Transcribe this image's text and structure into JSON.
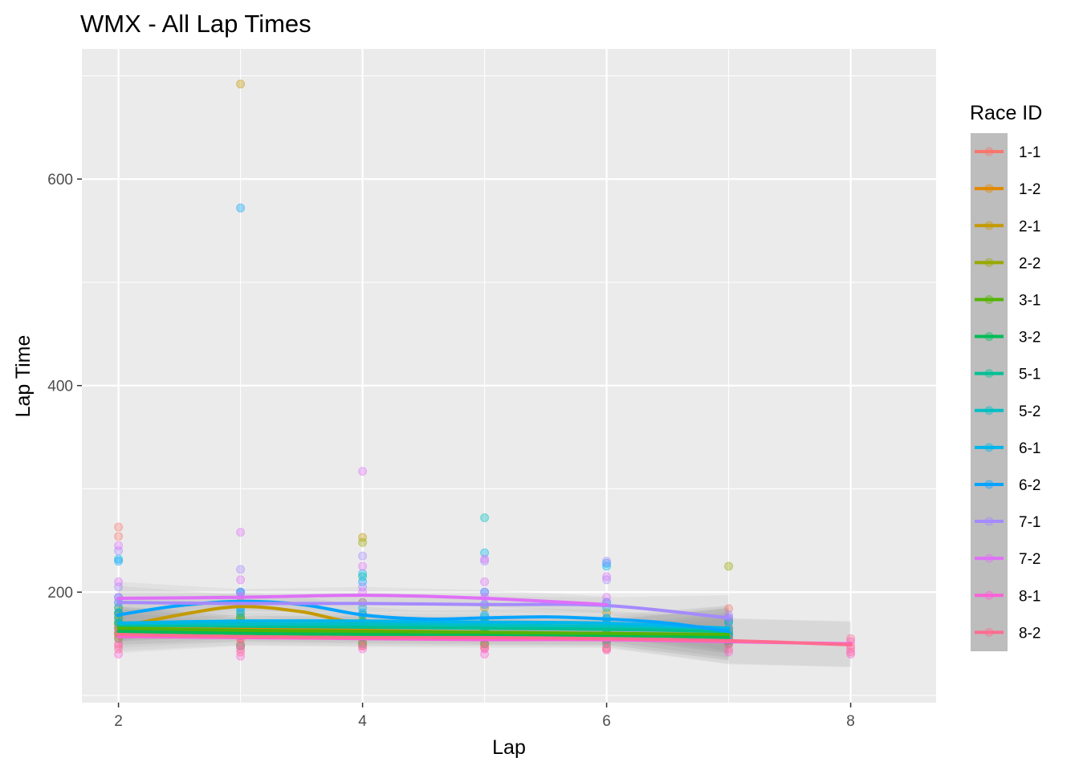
{
  "chart_data": {
    "type": "scatter",
    "title": "WMX - All Lap Times",
    "xlabel": "Lap",
    "ylabel": "Lap Time",
    "xlim": [
      1.7,
      8.7
    ],
    "ylim": [
      93,
      726
    ],
    "x_ticks": [
      2,
      4,
      6,
      8
    ],
    "y_ticks": [
      200,
      400,
      600
    ],
    "grid": true,
    "legend": {
      "title": "Race ID",
      "placement": "right",
      "entries": [
        "1-1",
        "1-2",
        "2-1",
        "2-2",
        "3-1",
        "3-2",
        "5-1",
        "5-2",
        "6-1",
        "6-2",
        "7-1",
        "7-2",
        "8-1",
        "8-2"
      ]
    },
    "series": [
      {
        "name": "1-1",
        "color": "#F8766D",
        "points": [
          [
            2,
            263
          ],
          [
            2,
            254
          ],
          [
            2,
            172
          ],
          [
            2,
            162
          ],
          [
            2,
            150
          ],
          [
            3,
            168
          ],
          [
            3,
            158
          ],
          [
            3,
            148
          ],
          [
            4,
            167
          ],
          [
            4,
            157
          ],
          [
            4,
            148
          ],
          [
            5,
            165
          ],
          [
            5,
            155
          ],
          [
            5,
            146
          ],
          [
            6,
            162
          ],
          [
            6,
            153
          ],
          [
            6,
            145
          ],
          [
            7,
            184
          ],
          [
            7,
            160
          ],
          [
            7,
            150
          ]
        ],
        "smooth": [
          [
            2,
            165
          ],
          [
            3,
            160
          ],
          [
            4,
            158
          ],
          [
            5,
            157
          ],
          [
            6,
            157
          ],
          [
            7,
            156
          ]
        ]
      },
      {
        "name": "1-2",
        "color": "#E38900",
        "points": [
          [
            2,
            178
          ],
          [
            2,
            168
          ],
          [
            2,
            158
          ],
          [
            3,
            178
          ],
          [
            3,
            165
          ],
          [
            3,
            155
          ],
          [
            4,
            172
          ],
          [
            4,
            162
          ],
          [
            4,
            152
          ],
          [
            5,
            170
          ],
          [
            5,
            160
          ],
          [
            5,
            150
          ],
          [
            6,
            168
          ],
          [
            6,
            158
          ],
          [
            7,
            165
          ],
          [
            7,
            155
          ]
        ],
        "smooth": [
          [
            2,
            168
          ],
          [
            3,
            166
          ],
          [
            4,
            163
          ],
          [
            5,
            161
          ],
          [
            6,
            160
          ],
          [
            7,
            158
          ]
        ]
      },
      {
        "name": "2-1",
        "color": "#C49A00",
        "points": [
          [
            2,
            185
          ],
          [
            2,
            170
          ],
          [
            2,
            160
          ],
          [
            3,
            692
          ],
          [
            3,
            190
          ],
          [
            3,
            175
          ],
          [
            4,
            253
          ],
          [
            4,
            190
          ],
          [
            4,
            170
          ],
          [
            5,
            185
          ],
          [
            5,
            168
          ],
          [
            6,
            180
          ],
          [
            6,
            165
          ],
          [
            7,
            172
          ],
          [
            7,
            160
          ]
        ],
        "smooth": [
          [
            2,
            166
          ],
          [
            2.5,
            178
          ],
          [
            3,
            186
          ],
          [
            3.5,
            181
          ],
          [
            4,
            170
          ],
          [
            5,
            166
          ],
          [
            6,
            165
          ],
          [
            7,
            163
          ]
        ]
      },
      {
        "name": "2-2",
        "color": "#99A800",
        "points": [
          [
            2,
            180
          ],
          [
            2,
            165
          ],
          [
            3,
            175
          ],
          [
            3,
            162
          ],
          [
            4,
            248
          ],
          [
            4,
            178
          ],
          [
            4,
            165
          ],
          [
            5,
            172
          ],
          [
            5,
            160
          ],
          [
            6,
            170
          ],
          [
            6,
            158
          ],
          [
            7,
            225
          ],
          [
            7,
            165
          ],
          [
            7,
            155
          ]
        ],
        "smooth": [
          [
            2,
            170
          ],
          [
            3,
            169
          ],
          [
            4,
            168
          ],
          [
            5,
            166
          ],
          [
            6,
            165
          ],
          [
            7,
            163
          ]
        ]
      },
      {
        "name": "3-1",
        "color": "#53B400",
        "points": [
          [
            2,
            175
          ],
          [
            2,
            160
          ],
          [
            3,
            170
          ],
          [
            3,
            158
          ],
          [
            4,
            168
          ],
          [
            4,
            156
          ],
          [
            5,
            166
          ],
          [
            5,
            155
          ],
          [
            6,
            164
          ],
          [
            6,
            154
          ],
          [
            7,
            162
          ],
          [
            7,
            153
          ]
        ],
        "smooth": [
          [
            2,
            165
          ],
          [
            3,
            163
          ],
          [
            4,
            162
          ],
          [
            5,
            161
          ],
          [
            6,
            160
          ],
          [
            7,
            159
          ]
        ]
      },
      {
        "name": "3-2",
        "color": "#00BC56",
        "points": [
          [
            2,
            170
          ],
          [
            2,
            155
          ],
          [
            3,
            165
          ],
          [
            3,
            148
          ],
          [
            4,
            163
          ],
          [
            4,
            150
          ],
          [
            5,
            162
          ],
          [
            5,
            150
          ],
          [
            6,
            160
          ],
          [
            6,
            150
          ],
          [
            7,
            158
          ],
          [
            7,
            150
          ]
        ],
        "smooth": [
          [
            2,
            162
          ],
          [
            3,
            160
          ],
          [
            4,
            159
          ],
          [
            5,
            158
          ],
          [
            6,
            157
          ],
          [
            7,
            156
          ]
        ]
      },
      {
        "name": "5-1",
        "color": "#00C094",
        "points": [
          [
            2,
            180
          ],
          [
            2,
            165
          ],
          [
            3,
            175
          ],
          [
            3,
            160
          ],
          [
            4,
            215
          ],
          [
            4,
            172
          ],
          [
            4,
            158
          ],
          [
            5,
            170
          ],
          [
            5,
            156
          ],
          [
            6,
            168
          ],
          [
            6,
            155
          ],
          [
            7,
            165
          ],
          [
            7,
            154
          ]
        ],
        "smooth": [
          [
            2,
            168
          ],
          [
            3,
            167
          ],
          [
            4,
            166
          ],
          [
            5,
            165
          ],
          [
            6,
            164
          ],
          [
            7,
            162
          ]
        ]
      },
      {
        "name": "5-2",
        "color": "#00BFC4",
        "points": [
          [
            2,
            185
          ],
          [
            2,
            170
          ],
          [
            3,
            180
          ],
          [
            3,
            165
          ],
          [
            4,
            178
          ],
          [
            4,
            163
          ],
          [
            5,
            272
          ],
          [
            5,
            176
          ],
          [
            5,
            162
          ],
          [
            6,
            174
          ],
          [
            6,
            160
          ],
          [
            7,
            170
          ],
          [
            7,
            158
          ]
        ],
        "smooth": [
          [
            2,
            170
          ],
          [
            3,
            169
          ],
          [
            4,
            169
          ],
          [
            5,
            168
          ],
          [
            6,
            167
          ],
          [
            7,
            165
          ]
        ]
      },
      {
        "name": "6-1",
        "color": "#00B6EB",
        "points": [
          [
            2,
            232
          ],
          [
            2,
            190
          ],
          [
            2,
            175
          ],
          [
            3,
            200
          ],
          [
            3,
            182
          ],
          [
            4,
            218
          ],
          [
            4,
            185
          ],
          [
            4,
            170
          ],
          [
            5,
            238
          ],
          [
            5,
            188
          ],
          [
            5,
            172
          ],
          [
            6,
            225
          ],
          [
            6,
            185
          ],
          [
            6,
            170
          ],
          [
            7,
            175
          ],
          [
            7,
            162
          ]
        ],
        "smooth": [
          [
            2,
            170
          ],
          [
            3,
            172
          ],
          [
            4,
            172
          ],
          [
            5,
            171
          ],
          [
            6,
            170
          ],
          [
            7,
            165
          ]
        ]
      },
      {
        "name": "6-2",
        "color": "#06A4FF",
        "points": [
          [
            2,
            230
          ],
          [
            2,
            195
          ],
          [
            2,
            180
          ],
          [
            3,
            572
          ],
          [
            3,
            200
          ],
          [
            3,
            185
          ],
          [
            4,
            210
          ],
          [
            4,
            180
          ],
          [
            5,
            200
          ],
          [
            5,
            178
          ],
          [
            6,
            228
          ],
          [
            6,
            190
          ],
          [
            6,
            175
          ],
          [
            7,
            172
          ],
          [
            7,
            158
          ]
        ],
        "smooth": [
          [
            2,
            178
          ],
          [
            2.5,
            187
          ],
          [
            3,
            191
          ],
          [
            3.5,
            188
          ],
          [
            4,
            178
          ],
          [
            4.5,
            174
          ],
          [
            5,
            175
          ],
          [
            5.5,
            176
          ],
          [
            6,
            174
          ],
          [
            6.5,
            170
          ],
          [
            7,
            162
          ]
        ]
      },
      {
        "name": "7-1",
        "color": "#A58AFF",
        "points": [
          [
            2,
            240
          ],
          [
            2,
            205
          ],
          [
            2,
            190
          ],
          [
            3,
            222
          ],
          [
            3,
            200
          ],
          [
            3,
            188
          ],
          [
            4,
            235
          ],
          [
            4,
            205
          ],
          [
            4,
            190
          ],
          [
            5,
            230
          ],
          [
            5,
            200
          ],
          [
            5,
            188
          ],
          [
            6,
            230
          ],
          [
            6,
            212
          ],
          [
            6,
            190
          ],
          [
            7,
            178
          ],
          [
            7,
            165
          ]
        ],
        "smooth": [
          [
            2,
            190
          ],
          [
            3,
            189
          ],
          [
            4,
            189
          ],
          [
            5,
            188
          ],
          [
            6,
            187
          ],
          [
            7,
            175
          ]
        ]
      },
      {
        "name": "7-2",
        "color": "#DF70F8",
        "points": [
          [
            2,
            245
          ],
          [
            2,
            210
          ],
          [
            2,
            195
          ],
          [
            3,
            258
          ],
          [
            3,
            212
          ],
          [
            3,
            196
          ],
          [
            4,
            317
          ],
          [
            4,
            225
          ],
          [
            4,
            200
          ],
          [
            5,
            232
          ],
          [
            5,
            210
          ],
          [
            5,
            195
          ],
          [
            6,
            215
          ],
          [
            6,
            195
          ],
          [
            7,
            175
          ]
        ],
        "smooth": [
          [
            2,
            194
          ],
          [
            3,
            195
          ],
          [
            4,
            197
          ],
          [
            5,
            194
          ],
          [
            6,
            188
          ]
        ]
      },
      {
        "name": "8-1",
        "color": "#FB61D7",
        "points": [
          [
            2,
            160
          ],
          [
            2,
            148
          ],
          [
            2,
            140
          ],
          [
            3,
            155
          ],
          [
            3,
            145
          ],
          [
            3,
            138
          ],
          [
            4,
            155
          ],
          [
            4,
            145
          ],
          [
            5,
            155
          ],
          [
            5,
            145
          ],
          [
            5,
            140
          ],
          [
            6,
            152
          ],
          [
            6,
            144
          ],
          [
            7,
            150
          ],
          [
            7,
            142
          ],
          [
            8,
            152
          ],
          [
            8,
            145
          ],
          [
            8,
            140
          ]
        ],
        "smooth": [
          [
            2,
            157
          ],
          [
            3,
            156
          ],
          [
            4,
            155
          ],
          [
            5,
            154
          ],
          [
            6,
            154
          ],
          [
            7,
            152
          ],
          [
            8,
            150
          ]
        ]
      },
      {
        "name": "8-2",
        "color": "#FF6C91",
        "points": [
          [
            2,
            165
          ],
          [
            2,
            155
          ],
          [
            2,
            145
          ],
          [
            3,
            160
          ],
          [
            3,
            150
          ],
          [
            3,
            142
          ],
          [
            4,
            158
          ],
          [
            4,
            148
          ],
          [
            5,
            158
          ],
          [
            5,
            148
          ],
          [
            6,
            156
          ],
          [
            6,
            146
          ],
          [
            7,
            155
          ],
          [
            7,
            145
          ],
          [
            8,
            155
          ],
          [
            8,
            148
          ],
          [
            8,
            142
          ]
        ],
        "smooth": [
          [
            2,
            159
          ],
          [
            3,
            157
          ],
          [
            4,
            156
          ],
          [
            5,
            156
          ],
          [
            6,
            155
          ],
          [
            7,
            153
          ],
          [
            8,
            149
          ]
        ]
      }
    ]
  }
}
